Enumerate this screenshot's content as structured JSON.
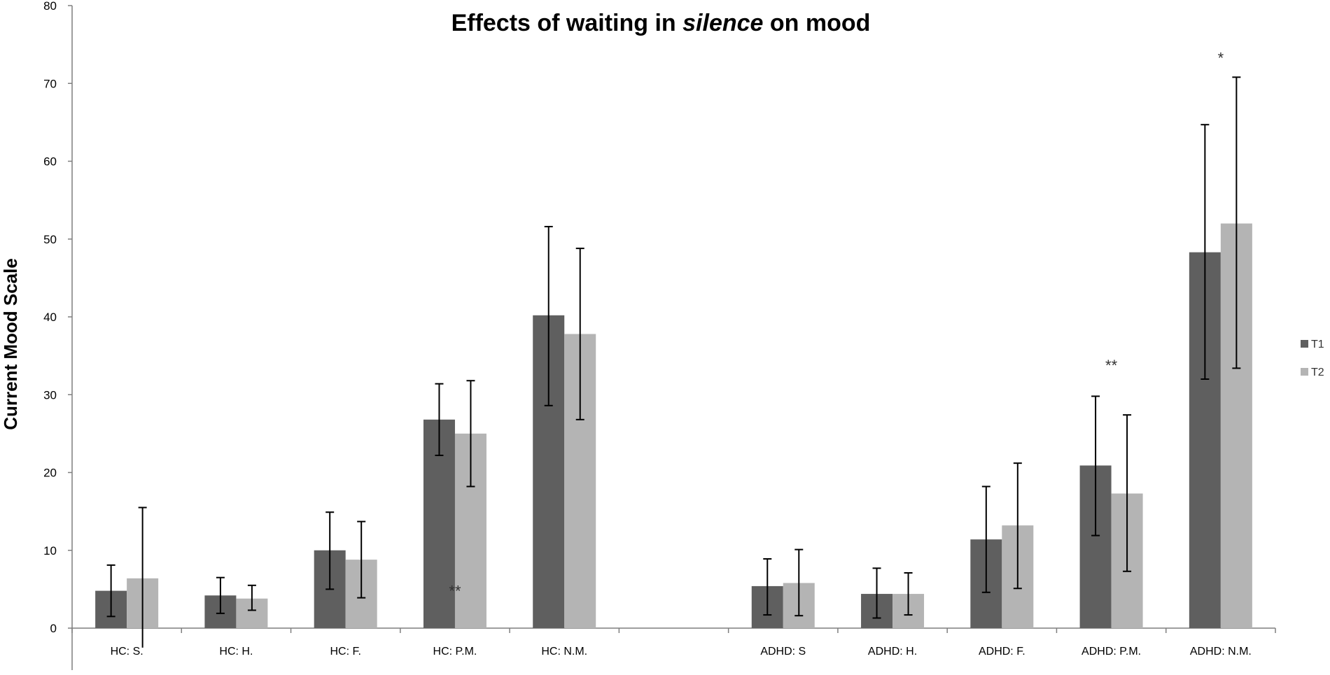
{
  "chart_data": {
    "type": "bar",
    "title_parts": [
      "Effects of waiting in ",
      "silence",
      " on mood"
    ],
    "xlabel": "",
    "ylabel": "Current Mood Scale",
    "ylim": [
      0,
      80
    ],
    "yticks": [
      0,
      10,
      20,
      30,
      40,
      50,
      60,
      70,
      80
    ],
    "ytick_labels": [
      "0",
      "10",
      "20",
      "30",
      "40",
      "50",
      "60",
      "70",
      "80"
    ],
    "grid": false,
    "legend_position": "right",
    "categories": [
      "HC: S.",
      "HC: H.",
      "HC: F.",
      "HC: P.M.",
      "HC: N.M.",
      "",
      "ADHD: S",
      "ADHD: H.",
      "ADHD: F.",
      "ADHD: P.M.",
      "ADHD: N.M."
    ],
    "series": [
      {
        "name": "T1",
        "color": "#5f5f5f",
        "values": [
          4.8,
          4.2,
          10.0,
          26.8,
          40.2,
          null,
          5.4,
          4.4,
          11.4,
          20.9,
          48.3
        ],
        "err_low": [
          1.5,
          1.9,
          5.0,
          22.2,
          28.6,
          null,
          1.7,
          1.3,
          4.6,
          11.9,
          32.0
        ],
        "err_high": [
          8.1,
          6.5,
          14.9,
          31.4,
          51.6,
          null,
          8.9,
          7.7,
          18.2,
          29.8,
          64.7
        ]
      },
      {
        "name": "T2",
        "color": "#b4b4b4",
        "values": [
          6.4,
          3.8,
          8.8,
          25.0,
          37.8,
          null,
          5.8,
          4.4,
          13.2,
          17.3,
          52.0
        ],
        "err_low": [
          -2.5,
          2.3,
          3.9,
          18.2,
          26.8,
          null,
          1.6,
          1.7,
          5.1,
          7.3,
          33.4
        ],
        "err_high": [
          15.5,
          5.5,
          13.7,
          31.8,
          48.8,
          null,
          10.1,
          7.1,
          21.2,
          27.4,
          70.8
        ]
      }
    ],
    "annotations": [
      {
        "text": "**",
        "category_index": 3,
        "y": 5.0
      },
      {
        "text": "**",
        "category_index": 9,
        "y": 34.0
      },
      {
        "text": "*",
        "category_index": 10,
        "y": 73.5
      }
    ]
  }
}
